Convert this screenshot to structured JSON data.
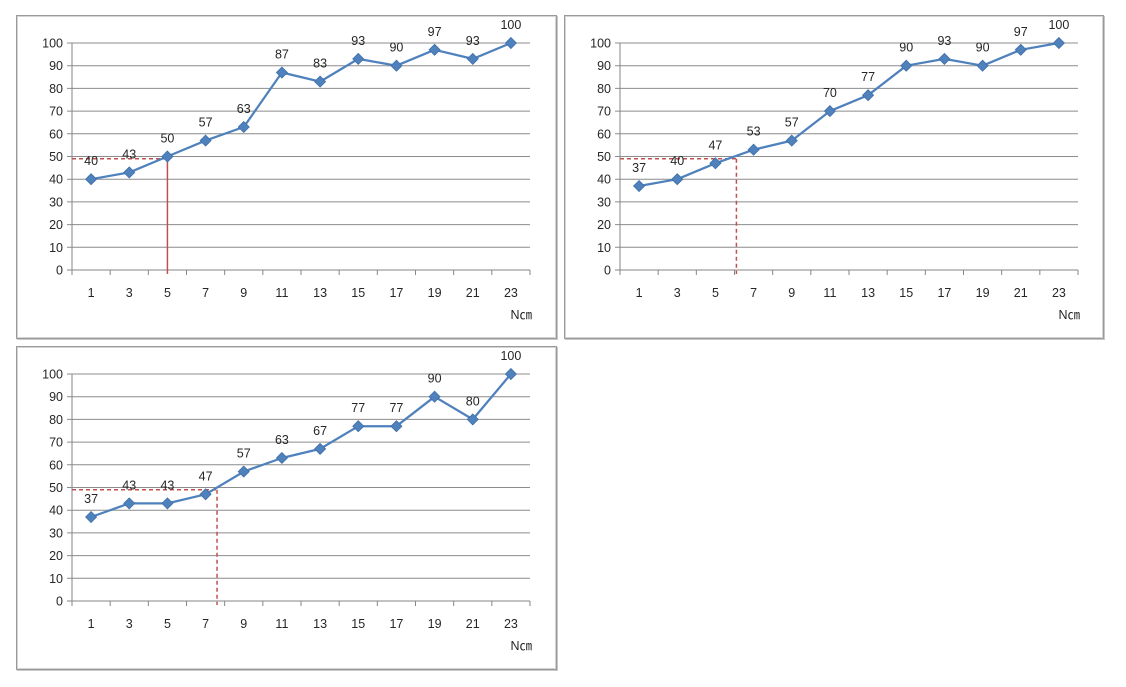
{
  "chart_data": [
    {
      "type": "line",
      "x": [
        1,
        3,
        5,
        7,
        9,
        11,
        13,
        15,
        17,
        19,
        21,
        23
      ],
      "values": [
        40,
        43,
        50,
        57,
        63,
        87,
        83,
        93,
        90,
        97,
        93,
        100
      ],
      "data_labels": [
        "40",
        "43",
        "50",
        "57",
        "63",
        "87",
        "83",
        "93",
        "90",
        "97",
        "93",
        "100"
      ],
      "x_ticks": [
        "1",
        "3",
        "5",
        "7",
        "9",
        "11",
        "13",
        "15",
        "17",
        "19",
        "21",
        "23"
      ],
      "y_ticks": [
        "0",
        "10",
        "20",
        "30",
        "40",
        "50",
        "60",
        "70",
        "80",
        "90",
        "100"
      ],
      "xlabel": "N㎝",
      "ylim": [
        0,
        100
      ],
      "grid": true,
      "reference": {
        "y": 49,
        "x": 5,
        "style": "solid-vertical",
        "color": "#c0504d"
      },
      "line_color": "#4f81bd"
    },
    {
      "type": "line",
      "x": [
        1,
        3,
        5,
        7,
        9,
        11,
        13,
        15,
        17,
        19,
        21,
        23
      ],
      "values": [
        37,
        40,
        47,
        53,
        57,
        70,
        77,
        90,
        93,
        90,
        97,
        100
      ],
      "data_labels": [
        "37",
        "40",
        "47",
        "53",
        "57",
        "70",
        "77",
        "90",
        "93",
        "90",
        "97",
        "100"
      ],
      "x_ticks": [
        "1",
        "3",
        "5",
        "7",
        "9",
        "11",
        "13",
        "15",
        "17",
        "19",
        "21",
        "23"
      ],
      "y_ticks": [
        "0",
        "10",
        "20",
        "30",
        "40",
        "50",
        "60",
        "70",
        "80",
        "90",
        "100"
      ],
      "xlabel": "N㎝",
      "ylim": [
        0,
        100
      ],
      "grid": true,
      "reference": {
        "y": 49,
        "x": 6.1,
        "style": "dashed",
        "color": "#c0504d"
      },
      "line_color": "#4f81bd"
    },
    {
      "type": "line",
      "x": [
        1,
        3,
        5,
        7,
        9,
        11,
        13,
        15,
        17,
        19,
        21,
        23
      ],
      "values": [
        37,
        43,
        43,
        47,
        57,
        63,
        67,
        77,
        77,
        90,
        80,
        100
      ],
      "data_labels": [
        "37",
        "43",
        "43",
        "47",
        "57",
        "63",
        "67",
        "77",
        "77",
        "90",
        "80",
        "100"
      ],
      "x_ticks": [
        "1",
        "3",
        "5",
        "7",
        "9",
        "11",
        "13",
        "15",
        "17",
        "19",
        "21",
        "23"
      ],
      "y_ticks": [
        "0",
        "10",
        "20",
        "30",
        "40",
        "50",
        "60",
        "70",
        "80",
        "90",
        "100"
      ],
      "xlabel": "N㎝",
      "ylim": [
        0,
        100
      ],
      "grid": true,
      "reference": {
        "y": 49,
        "x": 7.6,
        "style": "dashed",
        "color": "#c0504d"
      },
      "line_color": "#4f81bd"
    }
  ]
}
